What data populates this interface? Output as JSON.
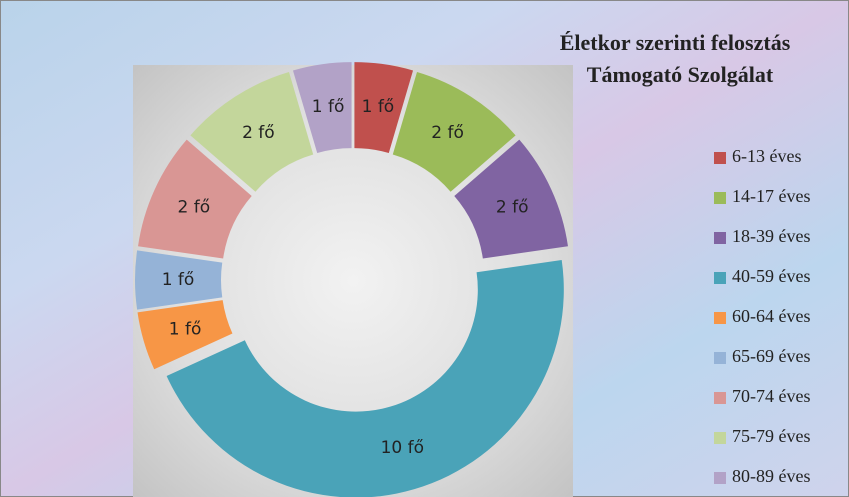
{
  "chart_data": {
    "type": "donut",
    "title": "Életkor szerinti felosztás",
    "subtitle": "Támogató Szolgálat",
    "categories": [
      "6-13 éves",
      "14-17 éves",
      "18-39 éves",
      "40-59 éves",
      "60-64 éves",
      "65-69 éves",
      "70-74 éves",
      "75-79 éves",
      "80-89 éves"
    ],
    "values": [
      1,
      2,
      2,
      10,
      1,
      1,
      2,
      2,
      1
    ],
    "value_labels": [
      "1 fő",
      "2 fő",
      "2 fő",
      "10  fő",
      "1 fő",
      "1 fő",
      "2 fő",
      "2 fő",
      "1 fő"
    ],
    "colors": [
      "#c0504d",
      "#9bbb59",
      "#8064a2",
      "#4aa3b8",
      "#f79646",
      "#95b3d7",
      "#d99694",
      "#c3d69b",
      "#b2a2c7"
    ],
    "legend": "right"
  }
}
